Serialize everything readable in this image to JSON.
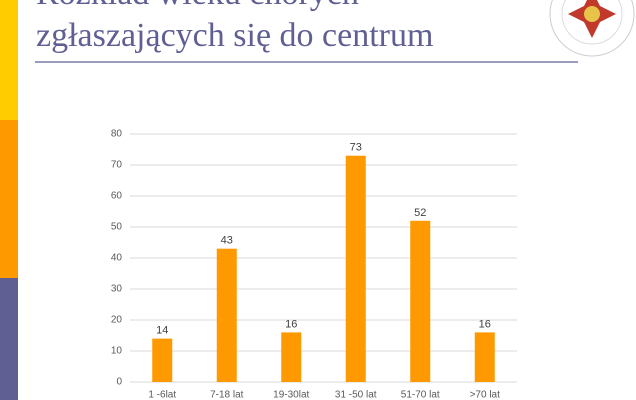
{
  "header": {
    "title_lines": [
      "Rozkład wieku chorych",
      "zgłaszających się do centrum"
    ]
  },
  "chart_data": {
    "type": "bar",
    "categories": [
      "1 -6lat",
      "7-18 lat",
      "19-30lat",
      "31 -50 lat",
      "51-70 lat",
      ">70 lat"
    ],
    "values": [
      14,
      43,
      16,
      73,
      52,
      16
    ],
    "color": "#ff9900",
    "ylim": [
      0,
      80
    ],
    "yticks": [
      0,
      10,
      20,
      30,
      40,
      50,
      60,
      70,
      80
    ],
    "grid": true
  }
}
